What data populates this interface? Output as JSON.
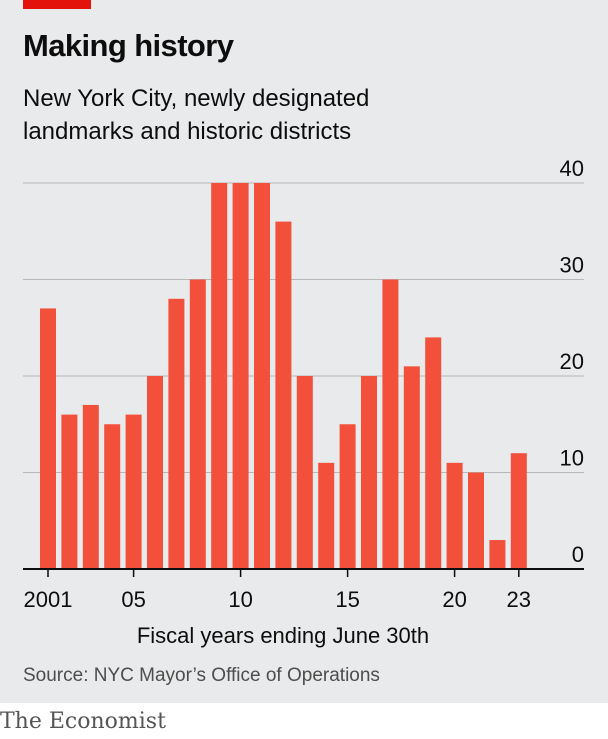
{
  "header": {
    "title": "Making history",
    "subtitle": "New York City, newly designated landmarks and historic districts"
  },
  "footer": {
    "source": "Source: NYC Mayor’s Office of Operations",
    "brand": "The Economist"
  },
  "colors": {
    "bar": "#f2503a",
    "accent": "#e3120b",
    "grid": "#b7b7b7",
    "baseline": "#0d0d0d",
    "panel": "#e9eaeb"
  },
  "chart_data": {
    "type": "bar",
    "title": "Making history",
    "subtitle": "New York City, newly designated landmarks and historic districts",
    "xlabel": "Fiscal years ending June 30th",
    "ylabel": "",
    "ylim": [
      0,
      40
    ],
    "yticks": [
      0,
      10,
      20,
      30,
      40
    ],
    "grid": true,
    "legend": "none",
    "categories": [
      2001,
      2002,
      2003,
      2004,
      2005,
      2006,
      2007,
      2008,
      2009,
      2010,
      2011,
      2012,
      2013,
      2014,
      2015,
      2016,
      2017,
      2018,
      2019,
      2020,
      2021,
      2022,
      2023
    ],
    "values": [
      27,
      16,
      17,
      15,
      16,
      20,
      28,
      30,
      40,
      40,
      40,
      36,
      20,
      11,
      15,
      20,
      30,
      21,
      24,
      11,
      10,
      3,
      12
    ],
    "xtick_labels": [
      {
        "year": 2001,
        "label": "2001"
      },
      {
        "year": 2005,
        "label": "05"
      },
      {
        "year": 2010,
        "label": "10"
      },
      {
        "year": 2015,
        "label": "15"
      },
      {
        "year": 2020,
        "label": "20"
      },
      {
        "year": 2023,
        "label": "23"
      }
    ]
  }
}
